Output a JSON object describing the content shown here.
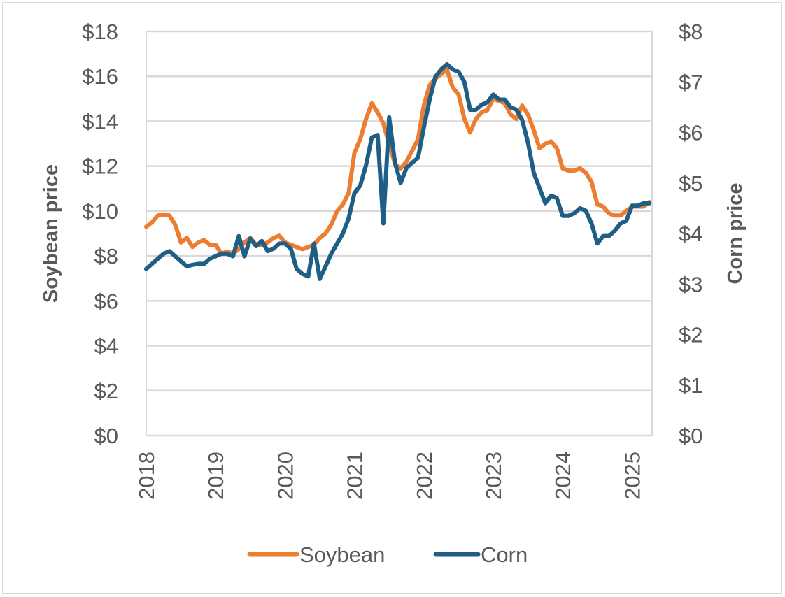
{
  "chart_data": {
    "type": "line",
    "title": "",
    "xlabel": "",
    "ylabel": "Soybean price",
    "y2label": "Corn price",
    "ylim": [
      0,
      18
    ],
    "y2lim": [
      0,
      8
    ],
    "yticks": [
      "$0",
      "$2",
      "$4",
      "$6",
      "$8",
      "$10",
      "$12",
      "$14",
      "$16",
      "$18"
    ],
    "y2ticks": [
      "$0",
      "$1",
      "$2",
      "$3",
      "$4",
      "$5",
      "$6",
      "$7",
      "$8"
    ],
    "xticks": [
      "2018",
      "2019",
      "2020",
      "2021",
      "2022",
      "2023",
      "2024",
      "2025"
    ],
    "x_start": "2018-01",
    "x_frequency": "monthly",
    "grid": true,
    "legend": "bottom",
    "series": [
      {
        "name": "Soybean",
        "axis": "left",
        "color": "#ED7D31",
        "values": [
          9.3,
          9.5,
          9.8,
          9.85,
          9.8,
          9.4,
          8.6,
          8.8,
          8.4,
          8.6,
          8.7,
          8.5,
          8.5,
          8.1,
          8.2,
          8.1,
          8.3,
          8.6,
          8.8,
          8.5,
          8.5,
          8.6,
          8.8,
          8.9,
          8.6,
          8.5,
          8.4,
          8.3,
          8.4,
          8.5,
          8.8,
          9.0,
          9.4,
          10.0,
          10.3,
          10.8,
          12.6,
          13.2,
          14.1,
          14.8,
          14.4,
          13.9,
          13.0,
          12.1,
          11.9,
          12.2,
          12.7,
          13.2,
          14.7,
          15.6,
          15.9,
          16.1,
          16.3,
          15.5,
          15.2,
          14.1,
          13.5,
          14.1,
          14.4,
          14.5,
          15.0,
          14.9,
          14.8,
          14.3,
          14.1,
          14.7,
          14.3,
          13.6,
          12.8,
          13.0,
          13.1,
          12.8,
          11.9,
          11.8,
          11.8,
          11.9,
          11.7,
          11.3,
          10.3,
          10.2,
          9.9,
          9.8,
          9.8,
          10.0,
          10.2,
          10.2,
          10.2,
          10.4
        ]
      },
      {
        "name": "Corn",
        "axis": "right",
        "color": "#1F5F85",
        "values": [
          3.3,
          3.4,
          3.5,
          3.6,
          3.65,
          3.55,
          3.45,
          3.35,
          3.38,
          3.4,
          3.4,
          3.5,
          3.55,
          3.6,
          3.6,
          3.55,
          3.95,
          3.55,
          3.9,
          3.75,
          3.85,
          3.65,
          3.7,
          3.8,
          3.8,
          3.7,
          3.3,
          3.2,
          3.15,
          3.8,
          3.1,
          3.35,
          3.6,
          3.8,
          4.0,
          4.3,
          4.8,
          4.95,
          5.35,
          5.9,
          5.95,
          4.2,
          6.3,
          5.4,
          5.0,
          5.3,
          5.4,
          5.5,
          6.1,
          6.65,
          7.1,
          7.25,
          7.35,
          7.25,
          7.2,
          7.0,
          6.45,
          6.45,
          6.55,
          6.6,
          6.75,
          6.65,
          6.65,
          6.5,
          6.45,
          6.25,
          5.8,
          5.2,
          4.9,
          4.6,
          4.75,
          4.7,
          4.35,
          4.35,
          4.4,
          4.5,
          4.45,
          4.2,
          3.8,
          3.95,
          3.95,
          4.05,
          4.2,
          4.25,
          4.55,
          4.55,
          4.6,
          4.6
        ]
      }
    ]
  }
}
